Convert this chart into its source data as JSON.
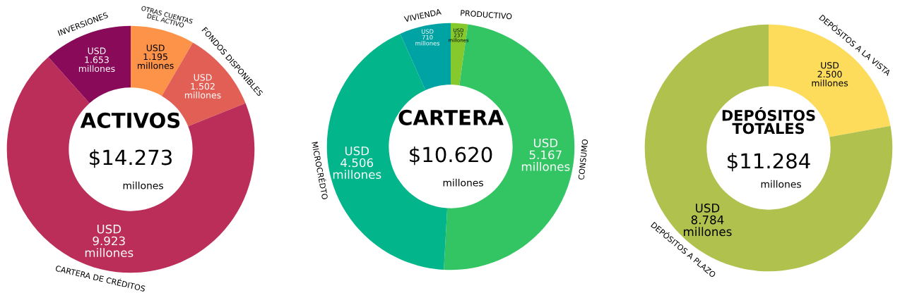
{
  "chart_data": [
    {
      "type": "donut",
      "title": "ACTIVOS",
      "annotations": [
        "$14.273",
        "millones"
      ],
      "categories": [
        "OTRAS CUENTAS\nDEL ACTIVO",
        "FONDOS DISPONIBLES",
        "CARTERA DE CRÉDITOS",
        "INVERSIONES"
      ],
      "values": [
        1195,
        1502,
        9923,
        1653
      ],
      "colors": [
        "#fd9249",
        "#e25f55",
        "#bb2e5a",
        "#8a0a5a"
      ],
      "value_labels": [
        "USD\n1.195\nmillones",
        "USD\n1.502\nmillones",
        "USD\n9.923\nmillones",
        "USD\n1.653\nmillones"
      ]
    },
    {
      "type": "donut",
      "title": "CARTERA",
      "annotations": [
        "$10.620",
        "millones"
      ],
      "categories": [
        "PRODUCTIVO",
        "CONSUMO",
        "MICROCRÉDTO",
        "VIVIENDA"
      ],
      "values": [
        237,
        5167,
        4506,
        710
      ],
      "colors": [
        "#86c92d",
        "#33c464",
        "#03b58b",
        "#00a3a3"
      ],
      "value_labels": [
        "USD\n237\nmillones",
        "USD\n5.167\nmillones",
        "USD\n4.506\nmillones",
        "USD\n710\nmillones"
      ]
    },
    {
      "type": "donut",
      "title": "DEPÓSITOS\nTOTALES",
      "annotations": [
        "$11.284",
        "millones"
      ],
      "categories": [
        "DEPÓSITOS A LA VISTA",
        "DEPÓSITOS A PLAZO"
      ],
      "values": [
        2500,
        8784
      ],
      "colors": [
        "#fddc5c",
        "#b0c24d"
      ],
      "value_labels": [
        "USD\n2.500\nmillones",
        "USD\n8.784\nmillones"
      ]
    }
  ]
}
